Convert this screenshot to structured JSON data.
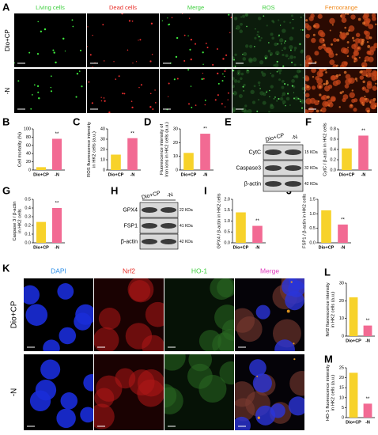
{
  "panel_a": {
    "letter": "A",
    "columns": [
      {
        "label": "Living cells",
        "color": "#3fcf3f"
      },
      {
        "label": "Dead cells",
        "color": "#e8302a"
      },
      {
        "label": "Merge",
        "color": "#3fcf3f"
      },
      {
        "label": "ROS",
        "color": "#3fcf3f"
      },
      {
        "label": "Ferroorange",
        "color": "#f08a1c"
      }
    ],
    "rows": [
      "Dio+CP",
      "-N"
    ]
  },
  "chart_data": [
    {
      "type": "bar",
      "panel": "B",
      "ylabel": [
        "Cell mortality (%)"
      ],
      "categories": [
        "Dio+CP",
        "-N"
      ],
      "values": [
        7,
        76
      ],
      "colors": [
        "#f7d22a",
        "#f26a93"
      ],
      "ylim": [
        0,
        100
      ],
      "yticks": [
        0,
        20,
        40,
        60,
        80,
        100
      ],
      "significance": "**"
    },
    {
      "type": "bar",
      "panel": "C",
      "ylabel": [
        "ROS fluorescence intensity",
        "in HK2 cells (a.u.)"
      ],
      "categories": [
        "Dio+CP",
        "-N"
      ],
      "values": [
        15,
        31
      ],
      "colors": [
        "#f7d22a",
        "#f26a93"
      ],
      "ylim": [
        0,
        40
      ],
      "yticks": [
        0,
        10,
        20,
        30,
        40
      ],
      "significance": "**"
    },
    {
      "type": "bar",
      "panel": "D",
      "ylabel": [
        "Fluorescence intensity of",
        "Iron ions in HK2 cells (a.u.)"
      ],
      "categories": [
        "Dio+CP",
        "-N"
      ],
      "values": [
        12.5,
        26.5
      ],
      "colors": [
        "#f7d22a",
        "#f26a93"
      ],
      "ylim": [
        0,
        30
      ],
      "yticks": [
        0,
        10,
        20,
        30
      ],
      "significance": "**"
    },
    {
      "type": "bar",
      "panel": "F",
      "ylabel": [
        "CytC / β-actin in HK2 cells"
      ],
      "categories": [
        "Dio+CP",
        "-N"
      ],
      "values": [
        0.42,
        0.67
      ],
      "colors": [
        "#f7d22a",
        "#f26a93"
      ],
      "ylim": [
        0,
        0.8
      ],
      "yticks": [
        {
          "value": 0,
          "label": "0.0"
        },
        0.2,
        0.4,
        0.6,
        0.8
      ],
      "significance": "**"
    },
    {
      "type": "bar",
      "panel": "G",
      "ylabel": [
        "Caspase 3 / β-actin",
        "in HK2 cells"
      ],
      "categories": [
        "Dio+CP",
        "-N"
      ],
      "values": [
        0.24,
        0.4
      ],
      "colors": [
        "#f7d22a",
        "#f26a93"
      ],
      "ylim": [
        0,
        0.5
      ],
      "yticks": [
        {
          "value": 0,
          "label": "0.0"
        },
        0.1,
        0.2,
        0.3,
        0.4,
        0.5
      ],
      "significance": "**"
    },
    {
      "type": "bar",
      "panel": "I",
      "ylabel": [
        "GPX4 / β-actin in HK2 cells"
      ],
      "categories": [
        "Dio+CP",
        "-N"
      ],
      "values": [
        1.4,
        0.78
      ],
      "colors": [
        "#f7d22a",
        "#f26a93"
      ],
      "ylim": [
        0,
        2
      ],
      "yticks": [
        {
          "value": 0,
          "label": "0.0"
        },
        0.5,
        {
          "value": 1,
          "label": "1.0"
        },
        1.5,
        {
          "value": 2,
          "label": "2.0"
        }
      ],
      "significance": "**"
    },
    {
      "type": "bar",
      "panel": "J",
      "ylabel": [
        "FSP1 / β-actin in HK2 cells"
      ],
      "categories": [
        "Dio+CP",
        "-N"
      ],
      "values": [
        1.12,
        0.63
      ],
      "colors": [
        "#f7d22a",
        "#f26a93"
      ],
      "ylim": [
        0,
        1.5
      ],
      "yticks": [
        {
          "value": 0,
          "label": "0.0"
        },
        0.5,
        {
          "value": 1,
          "label": "1.0"
        },
        1.5
      ],
      "significance": "**"
    },
    {
      "type": "bar",
      "panel": "L",
      "ylabel": [
        "Nrf2 fluorescence intensity",
        "in HK2 cells (a.u.)"
      ],
      "categories": [
        "Dio+CP",
        "-N"
      ],
      "values": [
        22,
        6
      ],
      "colors": [
        "#f7d22a",
        "#f26a93"
      ],
      "ylim": [
        0,
        30
      ],
      "yticks": [
        0,
        10,
        20,
        30
      ],
      "significance": "**"
    },
    {
      "type": "bar",
      "panel": "M",
      "ylabel": [
        "HO-1 fluorescence intensity",
        "in HK2 cells (a.u.)"
      ],
      "categories": [
        "Dio+CP",
        "-N"
      ],
      "values": [
        22.5,
        7
      ],
      "colors": [
        "#f7d22a",
        "#f26a93"
      ],
      "ylim": [
        0,
        25
      ],
      "yticks": [
        0,
        5,
        10,
        15,
        20,
        25
      ],
      "significance": "**"
    }
  ],
  "blots": [
    {
      "panel": "E",
      "lanes": [
        "Dio+CP",
        "-N"
      ],
      "rows": [
        {
          "name": "CytC",
          "size": "15 KDa"
        },
        {
          "name": "Caspase3",
          "size": "32 KDa"
        },
        {
          "name": "β-actin",
          "size": "42 KDa"
        }
      ]
    },
    {
      "panel": "H",
      "lanes": [
        "Dio+CP",
        "-N"
      ],
      "rows": [
        {
          "name": "GPX4",
          "size": "22 KDa"
        },
        {
          "name": "FSP1",
          "size": "41 KDa"
        },
        {
          "name": "β-actin",
          "size": "42 KDa"
        }
      ]
    }
  ],
  "panel_k": {
    "letter": "K",
    "columns": [
      {
        "label": "DAPI",
        "color": "#2a8ee8"
      },
      {
        "label": "Nrf2",
        "color": "#e8302a"
      },
      {
        "label": "HO-1",
        "color": "#3fcf3f"
      },
      {
        "label": "Merge",
        "color": "#e040c0"
      }
    ],
    "rows": [
      "Dio+CP",
      "-N"
    ]
  }
}
